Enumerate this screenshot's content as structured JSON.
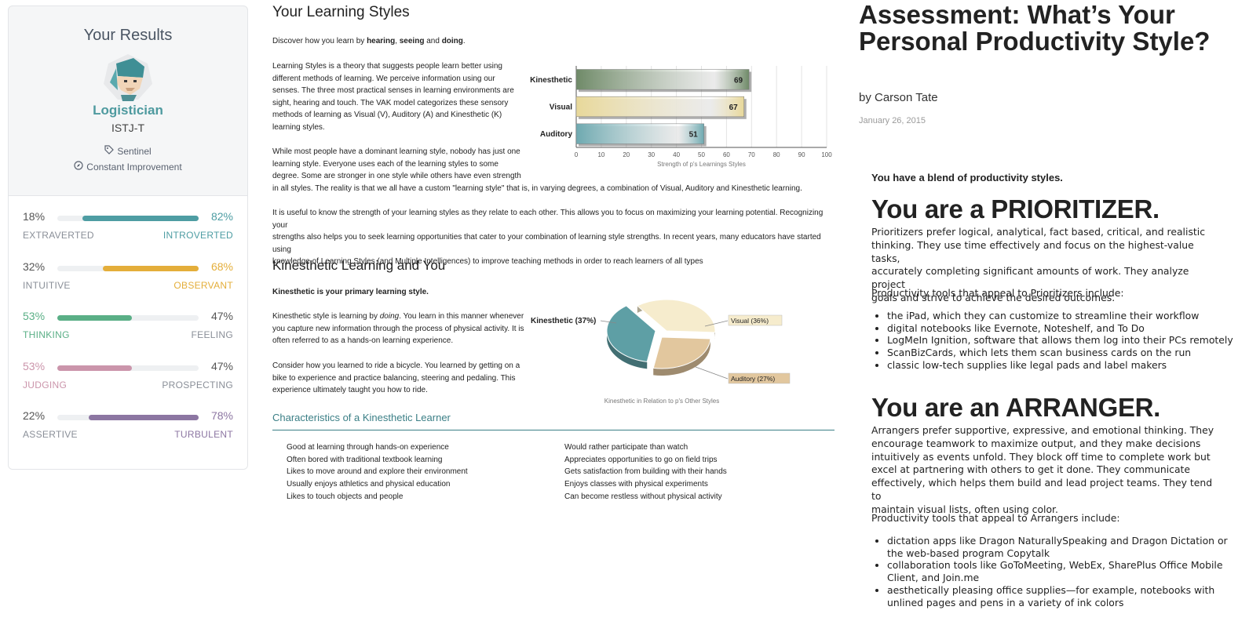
{
  "left_panel": {
    "title": "Your Results",
    "persona": "Logistician",
    "type_code": "ISTJ-T",
    "role": "Sentinel",
    "strategy": "Constant Improvement",
    "traits": [
      {
        "left_pct": "18%",
        "right_pct": "82%",
        "left_label": "EXTRAVERTED",
        "right_label": "INTROVERTED",
        "dominant": "right",
        "value": 0.82,
        "color": "#4e9da3"
      },
      {
        "left_pct": "32%",
        "right_pct": "68%",
        "left_label": "INTUITIVE",
        "right_label": "OBSERVANT",
        "dominant": "right",
        "value": 0.68,
        "color": "#e4ae3a"
      },
      {
        "left_pct": "53%",
        "right_pct": "47%",
        "left_label": "THINKING",
        "right_label": "FEELING",
        "dominant": "left",
        "value": 0.53,
        "color": "#5aaf86"
      },
      {
        "left_pct": "53%",
        "right_pct": "47%",
        "left_label": "JUDGING",
        "right_label": "PROSPECTING",
        "dominant": "left",
        "value": 0.53,
        "color": "#cb95ab"
      },
      {
        "left_pct": "22%",
        "right_pct": "78%",
        "left_label": "ASSERTIVE",
        "right_label": "TURBULENT",
        "dominant": "right",
        "value": 0.78,
        "color": "#8c76a2"
      }
    ]
  },
  "middle": {
    "title": "Your Learning Styles",
    "intro_pre": "Discover how you learn by ",
    "intro_hearing": "hearing",
    "intro_sep1": ", ",
    "intro_seeing": "seeing",
    "intro_sep2": " and ",
    "intro_doing": "doing",
    "intro_end": ".",
    "p1_lines": [
      "Learning Styles is a theory that suggests people learn better using",
      "different methods of learning. We perceive information using our",
      "senses. The three most practical senses in learning environments are",
      "sight, hearing and touch. The VAK model categorizes these sensory",
      "methods of learning as Visual (V), Auditory (A) and Kinesthetic (K)",
      "learning styles."
    ],
    "p2_lines": [
      "While most people have a dominant learning style, nobody has just one",
      "learning style. Everyone uses each of the learning styles to some",
      "degree. Some are stronger in one style while others have even strength",
      "in all styles. The reality is that we all have a custom \"learning style\" that is, in varying degrees, a combination of Visual, Auditory and Kinesthetic learning."
    ],
    "p3_lines": [
      "It is useful to know the strength of your learning styles as they relate to each other. This allows you to focus on maximizing your learning potential. Recognizing your",
      "strengths also helps you to seek learning opportunities that cater to your combination of learning style strengths. In recent years, many educators have started using",
      "knowledge of Learning Styles (and Multiple Intelligences) to improve teaching methods in order to reach learners of all types"
    ],
    "kin_title": "Kinesthetic Learning and You",
    "kin_primary": "Kinesthetic is your primary learning style.",
    "kin_p1_a": "Kinesthetic style is learning by ",
    "kin_p1_doing": "doing",
    "kin_p1_b": ". You learn in this manner whenever",
    "kin_p1_lines": [
      "you capture new information through the process of physical activity. It is",
      "often referred to as a hands-on learning experience."
    ],
    "kin_p2_lines": [
      "Consider how you learned to ride a bicycle. You learned by getting on a",
      "bike to experience and practice balancing, steering and pedaling. This",
      "experience ultimately taught you how to ride."
    ],
    "char_title": "Characteristics of a Kinesthetic Learner",
    "char_left": [
      "Good at learning through hands-on experience",
      "Often bored with traditional textbook learning",
      "Likes to move around and explore their environment",
      "Usually enjoys athletics and physical education",
      "Likes to touch objects and people"
    ],
    "char_right": [
      "Would rather participate than watch",
      "Appreciates opportunities to go on field trips",
      "Gets satisfaction from building with their hands",
      "Enjoys classes with physical experiments",
      "Can become restless without physical activity"
    ]
  },
  "chart_data": [
    {
      "type": "bar",
      "orientation": "horizontal",
      "categories": [
        "Kinesthetic",
        "Visual",
        "Auditory"
      ],
      "values": [
        69,
        67,
        51
      ],
      "xlabel": "Strength of p's Learnings Styles",
      "xlim": [
        0,
        100
      ],
      "xticks": [
        0,
        10,
        20,
        30,
        40,
        50,
        60,
        70,
        80,
        90,
        100
      ],
      "grid": true,
      "colors": [
        "#6f8a68",
        "#e8d89a",
        "#6ea9b0"
      ]
    },
    {
      "type": "pie",
      "labels": [
        "Kinesthetic (37%)",
        "Visual (36%)",
        "Auditory (27%)"
      ],
      "values": [
        37,
        36,
        27
      ],
      "title": "Kinesthetic in Relation to p's Other Styles",
      "colors": [
        "#5e9fa5",
        "#f6eccd",
        "#e2c79e"
      ]
    }
  ],
  "right": {
    "title": "Assessment: What’s Your Personal Productivity Style?",
    "byline": "by Carson Tate",
    "date": "January 26, 2015",
    "blend": "You have a blend of productivity styles.",
    "prioritizer_heading": "You are a PRIORITIZER.",
    "prioritizer_lines": [
      "Prioritizers prefer logical, analytical, fact based, critical, and realistic",
      "thinking. They use time effectively and focus on the highest-value tasks,",
      "accurately completing significant amounts of work. They analyze project",
      "goals and strive to achieve the desired outcomes."
    ],
    "prioritizer_tools_intro": "Productivity tools that appeal to Prioritizers include:",
    "prioritizer_tools": [
      "the iPad, which they can customize to streamline their workflow",
      "digital notebooks like Evernote, Noteshelf, and To Do",
      "LogMeIn Ignition, software that allows them log into their PCs remotely",
      "ScanBizCards, which lets them scan business cards on the run",
      "classic low-tech supplies like legal pads and label makers"
    ],
    "arranger_heading": "You are an ARRANGER.",
    "arranger_lines": [
      "Arrangers prefer supportive, expressive, and emotional thinking. They",
      "encourage teamwork to maximize output, and they make decisions",
      "intuitively as events unfold. They block off time to complete work but",
      "excel at partnering with others to get it done. They communicate",
      "effectively, which helps them build and lead project teams. They tend to",
      "maintain visual lists, often using color."
    ],
    "arranger_tools_intro": "Productivity tools that appeal to Arrangers include:",
    "arranger_tools": [
      "dictation apps like Dragon NaturallySpeaking and Dragon Dictation or the web-based program Copytalk",
      "collaboration tools like GoToMeeting, WebEx, SharePlus Office Mobile Client, and Join.me",
      "aesthetically pleasing office supplies—for example, notebooks with unlined pages and pens in a variety of ink colors"
    ]
  }
}
